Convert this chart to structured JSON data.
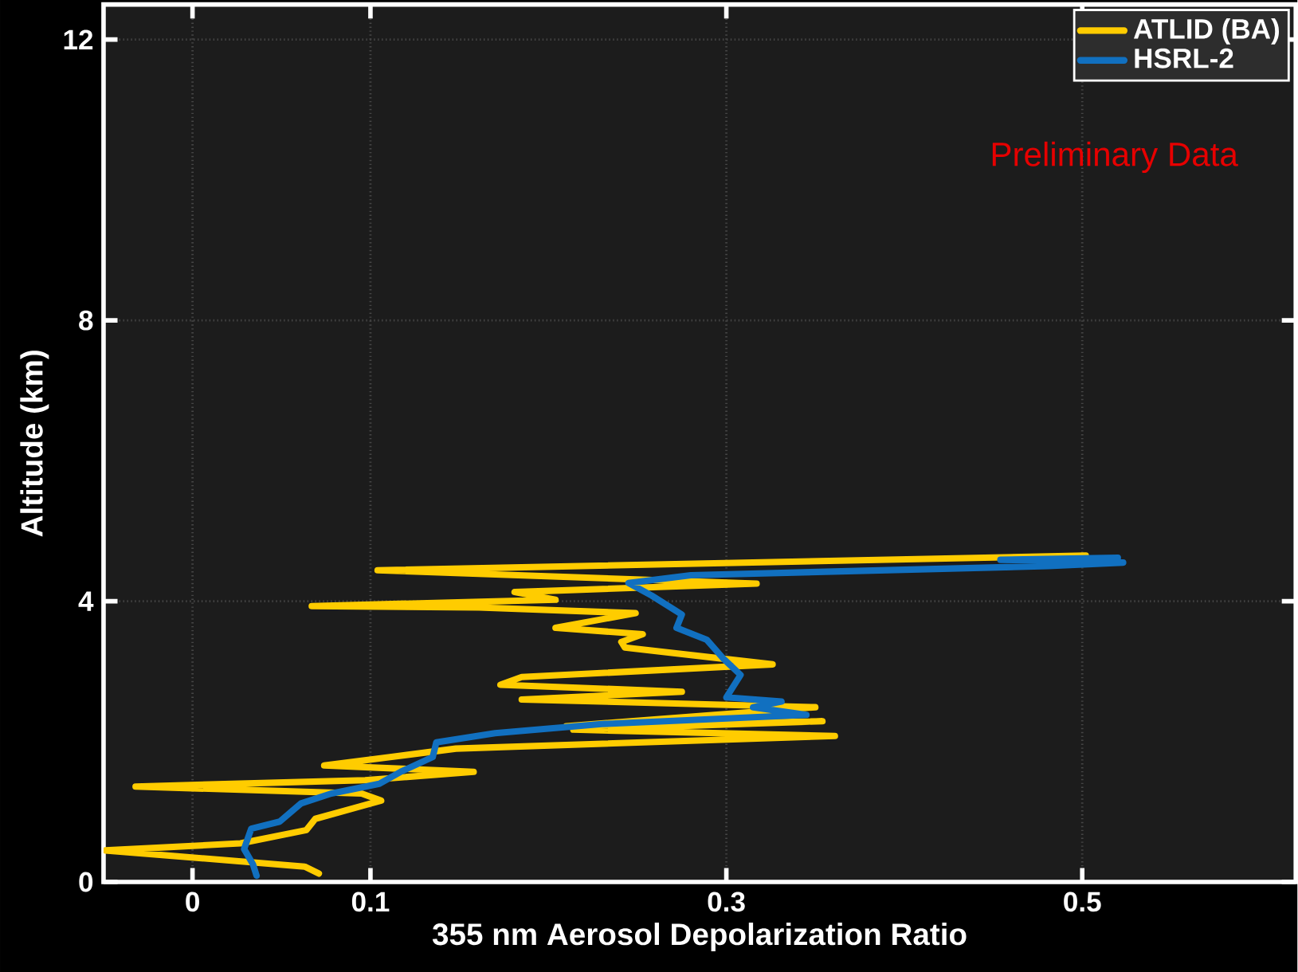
{
  "chart_data": {
    "type": "line",
    "xlabel": "355 nm Aerosol Depolarization Ratio",
    "ylabel": "Altitude (km)",
    "xlim": [
      -0.05,
      0.62
    ],
    "ylim": [
      0,
      12.5
    ],
    "xticks": [
      0,
      0.1,
      0.3,
      0.5
    ],
    "yticks": [
      0,
      4,
      8,
      12
    ],
    "grid": true,
    "legend": "top right",
    "annotations": [
      "Preliminary Data"
    ],
    "series": [
      {
        "name": "ATLID (BA)",
        "color": "#ffcc00",
        "x": [
          0.071,
          0.063,
          -0.049,
          0.027,
          0.064,
          0.069,
          0.106,
          0.095,
          -0.032,
          0.097,
          0.158,
          0.074,
          0.111,
          0.148,
          0.361,
          0.214,
          0.354,
          0.21,
          0.35,
          0.185,
          0.275,
          0.173,
          0.185,
          0.326,
          0.243,
          0.241,
          0.253,
          0.204,
          0.249,
          0.161,
          0.067,
          0.204,
          0.181,
          0.317,
          0.104,
          0.502
        ],
        "values": [
          0.12,
          0.22,
          0.45,
          0.55,
          0.74,
          0.9,
          1.16,
          1.26,
          1.36,
          1.45,
          1.57,
          1.66,
          1.78,
          1.9,
          2.08,
          2.17,
          2.29,
          2.22,
          2.49,
          2.6,
          2.71,
          2.81,
          2.92,
          3.1,
          3.34,
          3.42,
          3.53,
          3.62,
          3.83,
          3.91,
          3.93,
          4.02,
          4.13,
          4.25,
          4.44,
          4.65
        ]
      },
      {
        "name": "HSRL-2",
        "color": "#1170c0",
        "x": [
          0.036,
          0.034,
          0.029,
          0.033,
          0.049,
          0.061,
          0.078,
          0.105,
          0.117,
          0.135,
          0.137,
          0.17,
          0.23,
          0.345,
          0.315,
          0.331,
          0.3,
          0.308,
          0.298,
          0.289,
          0.272,
          0.275,
          0.258,
          0.245,
          0.28,
          0.481,
          0.523,
          0.454,
          0.52
        ],
        "values": [
          0.09,
          0.25,
          0.47,
          0.76,
          0.86,
          1.12,
          1.26,
          1.4,
          1.57,
          1.78,
          1.99,
          2.12,
          2.25,
          2.38,
          2.49,
          2.57,
          2.63,
          2.95,
          3.19,
          3.45,
          3.62,
          3.81,
          4.08,
          4.26,
          4.37,
          4.5,
          4.55,
          4.59,
          4.62
        ]
      }
    ]
  }
}
